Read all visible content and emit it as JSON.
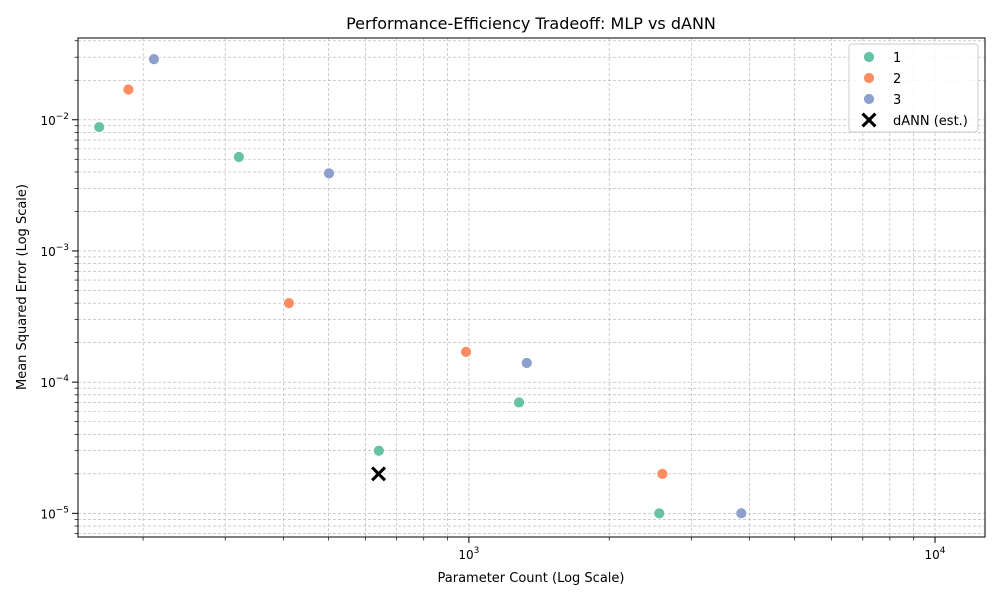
{
  "chart_data": {
    "type": "scatter",
    "title": "Performance-Efficiency Tradeoff: MLP vs dANN",
    "xlabel": "Parameter Count (Log Scale)",
    "ylabel": "Mean Squared Error (Log Scale)",
    "xscale": "log",
    "yscale": "log",
    "xlim": [
      145,
      12800
    ],
    "ylim": [
      6.6e-06,
      0.042
    ],
    "x_ticks": [
      {
        "value": 1000,
        "base": "10",
        "exp": "3"
      },
      {
        "value": 10000,
        "base": "10",
        "exp": "4"
      }
    ],
    "y_ticks": [
      {
        "value": 1e-05,
        "base": "10",
        "exp": "−5"
      },
      {
        "value": 0.0001,
        "base": "10",
        "exp": "−4"
      },
      {
        "value": 0.001,
        "base": "10",
        "exp": "−3"
      },
      {
        "value": 0.01,
        "base": "10",
        "exp": "−2"
      }
    ],
    "grid": true,
    "legend_position": "top-right",
    "series": [
      {
        "name": "1",
        "color": "#66c2a5",
        "marker": "circle",
        "points": [
          {
            "x": 161,
            "y": 0.0088
          },
          {
            "x": 321,
            "y": 0.0052
          },
          {
            "x": 641,
            "y": 3e-05
          },
          {
            "x": 1281,
            "y": 7e-05
          },
          {
            "x": 2561,
            "y": 1e-05
          }
        ]
      },
      {
        "name": "2",
        "color": "#fc8d62",
        "marker": "circle",
        "points": [
          {
            "x": 186,
            "y": 0.017
          },
          {
            "x": 411,
            "y": 0.0004
          },
          {
            "x": 986,
            "y": 0.00017
          },
          {
            "x": 2601,
            "y": 2e-05
          }
        ]
      },
      {
        "name": "3",
        "color": "#8da0cb",
        "marker": "circle",
        "points": [
          {
            "x": 211,
            "y": 0.029
          },
          {
            "x": 501,
            "y": 0.0039
          },
          {
            "x": 1331,
            "y": 0.00014
          },
          {
            "x": 3841,
            "y": 1e-05
          }
        ]
      },
      {
        "name": "dANN (est.)",
        "color": "#000000",
        "marker": "x",
        "points": [
          {
            "x": 640,
            "y": 2e-05
          }
        ]
      }
    ]
  }
}
